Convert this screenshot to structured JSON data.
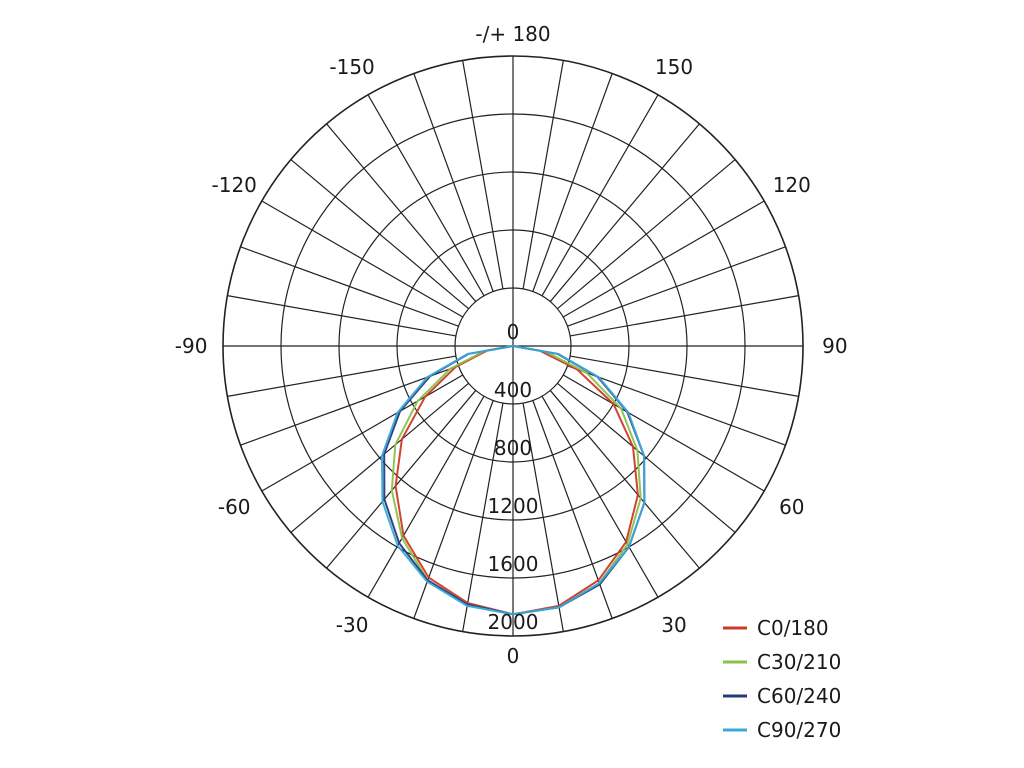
{
  "chart_data": {
    "type": "polar-line",
    "angular_axis": {
      "zero_position": "bottom",
      "range_degrees": [
        -180,
        180
      ],
      "grid_step_degrees": 10,
      "tick_labels": [
        {
          "angle": 0,
          "text": "0"
        },
        {
          "angle": 30,
          "text": "30"
        },
        {
          "angle": 60,
          "text": "60"
        },
        {
          "angle": 90,
          "text": "90"
        },
        {
          "angle": 120,
          "text": "120"
        },
        {
          "angle": 150,
          "text": "150"
        },
        {
          "angle": 180,
          "text": "-/+ 180"
        },
        {
          "angle": -150,
          "text": "-150"
        },
        {
          "angle": -120,
          "text": "-120"
        },
        {
          "angle": -90,
          "text": "-90"
        },
        {
          "angle": -60,
          "text": "-60"
        },
        {
          "angle": -30,
          "text": "-30"
        }
      ]
    },
    "radial_axis": {
      "range": [
        0,
        2000
      ],
      "rings": [
        400,
        800,
        1200,
        1600,
        2000
      ],
      "tick_labels": [
        "0",
        "400",
        "800",
        "1200",
        "1600",
        "2000"
      ]
    },
    "series": [
      {
        "name": "C0/180",
        "color": "#cc3a27",
        "points": [
          [
            -90,
            0
          ],
          [
            -80,
            180
          ],
          [
            -70,
            420
          ],
          [
            -60,
            700
          ],
          [
            -50,
            1000
          ],
          [
            -40,
            1260
          ],
          [
            -30,
            1510
          ],
          [
            -20,
            1700
          ],
          [
            -10,
            1800
          ],
          [
            0,
            1850
          ],
          [
            10,
            1820
          ],
          [
            20,
            1720
          ],
          [
            30,
            1560
          ],
          [
            40,
            1340
          ],
          [
            50,
            1080
          ],
          [
            60,
            800
          ],
          [
            70,
            470
          ],
          [
            80,
            190
          ],
          [
            90,
            0
          ]
        ]
      },
      {
        "name": "C30/210",
        "color": "#8dc04a",
        "points": [
          [
            -90,
            0
          ],
          [
            -80,
            200
          ],
          [
            -70,
            460
          ],
          [
            -60,
            760
          ],
          [
            -50,
            1060
          ],
          [
            -40,
            1300
          ],
          [
            -30,
            1530
          ],
          [
            -20,
            1720
          ],
          [
            -10,
            1810
          ],
          [
            0,
            1850
          ],
          [
            10,
            1830
          ],
          [
            20,
            1740
          ],
          [
            30,
            1580
          ],
          [
            40,
            1370
          ],
          [
            50,
            1120
          ],
          [
            60,
            860
          ],
          [
            70,
            540
          ],
          [
            80,
            230
          ],
          [
            90,
            0
          ]
        ]
      },
      {
        "name": "C60/240",
        "color": "#233c78",
        "points": [
          [
            -90,
            0
          ],
          [
            -80,
            310
          ],
          [
            -70,
            610
          ],
          [
            -60,
            900
          ],
          [
            -50,
            1160
          ],
          [
            -40,
            1380
          ],
          [
            -30,
            1570
          ],
          [
            -20,
            1720
          ],
          [
            -10,
            1810
          ],
          [
            0,
            1850
          ],
          [
            10,
            1830
          ],
          [
            20,
            1750
          ],
          [
            30,
            1600
          ],
          [
            40,
            1410
          ],
          [
            50,
            1180
          ],
          [
            60,
            910
          ],
          [
            70,
            620
          ],
          [
            80,
            310
          ],
          [
            90,
            0
          ]
        ]
      },
      {
        "name": "C90/270",
        "color": "#3ba8dc",
        "points": [
          [
            -90,
            0
          ],
          [
            -80,
            320
          ],
          [
            -70,
            630
          ],
          [
            -60,
            920
          ],
          [
            -50,
            1180
          ],
          [
            -40,
            1400
          ],
          [
            -30,
            1590
          ],
          [
            -20,
            1730
          ],
          [
            -10,
            1820
          ],
          [
            0,
            1850
          ],
          [
            10,
            1830
          ],
          [
            20,
            1740
          ],
          [
            30,
            1600
          ],
          [
            40,
            1410
          ],
          [
            50,
            1180
          ],
          [
            60,
            920
          ],
          [
            70,
            630
          ],
          [
            80,
            320
          ],
          [
            90,
            0
          ]
        ]
      }
    ],
    "legend": {
      "placement": "bottom-right",
      "entries": [
        "C0/180",
        "C30/210",
        "C60/240",
        "C90/270"
      ]
    }
  }
}
